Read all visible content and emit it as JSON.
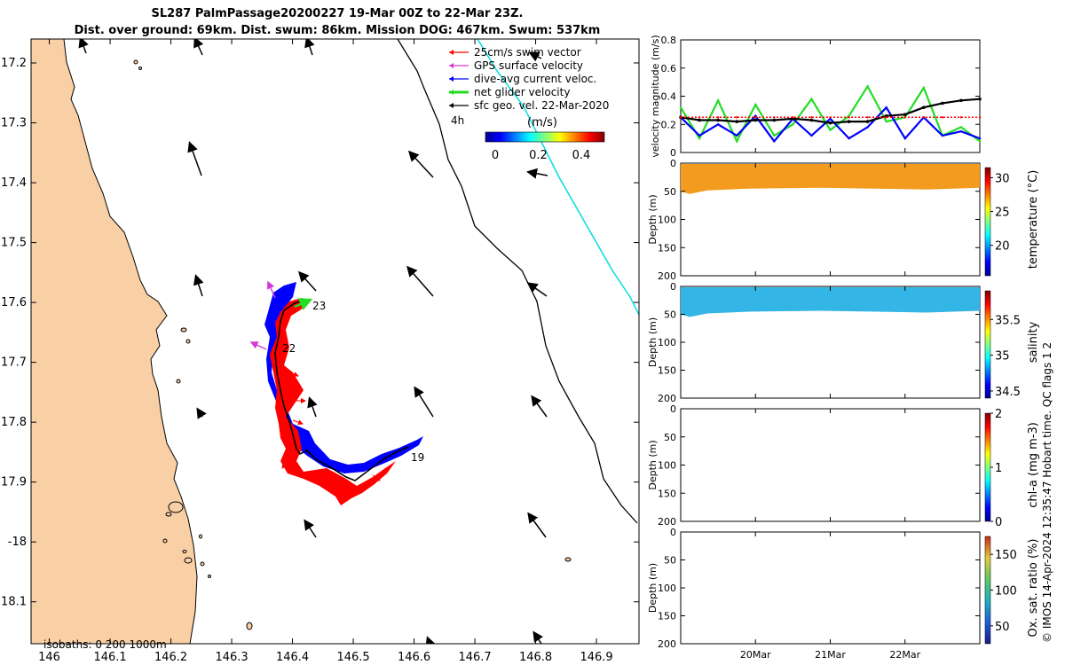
{
  "header": {
    "line1": "SL287 PalmPassage20200227 19-Mar 00Z to 22-Mar 23Z.",
    "line2": "Dist. over ground: 69km. Dist. swum: 86km. Mission DOG: 467km. Swum: 537km"
  },
  "footer": "© IMOS 14-Apr-2024 12:35:47 Hobart time. QC flags 1  2",
  "colors": {
    "land": "#f9cfa5",
    "swim": "#ff0000",
    "gps": "#d63ad6",
    "dive_avg": "#0000ff",
    "net": "#22dd22",
    "geo": "#000000",
    "track": "#00dddd"
  },
  "map": {
    "lon_ticks": [
      "146",
      "146.1",
      "146.2",
      "146.3",
      "146.4",
      "146.5",
      "146.6",
      "146.7",
      "146.8",
      "146.9"
    ],
    "lat_ticks": [
      "17.2",
      "17.3",
      "17.4",
      "17.5",
      "17.6",
      "17.7",
      "17.8",
      "17.9",
      "-18",
      "18.1"
    ],
    "xlim": [
      145.97,
      146.97
    ],
    "ylim": [
      -18.17,
      -17.16
    ],
    "isobaths_label": "isobaths: 0   200  1000m",
    "legend": [
      {
        "label": "25cm/s swim vector",
        "color": "#ff0000"
      },
      {
        "label": "GPS surface velocity",
        "color": "#d63ad6"
      },
      {
        "label": "dive-avg current veloc.",
        "color": "#0000ff"
      },
      {
        "label": "net glider velocity",
        "color": "#22dd22"
      },
      {
        "label": "sfc geo. vel. 22-Mar-2020",
        "color": "#000000"
      }
    ],
    "legend_extra": "4h",
    "colorbar_label": "(m/s)",
    "colorbar_ticks": [
      "0",
      "0.2",
      "0.4"
    ],
    "track_labels": [
      "23",
      "22",
      "19"
    ]
  },
  "chart_data": [
    {
      "type": "line",
      "ylabel": "velocity magnitude (m/s)",
      "ylim": [
        0,
        0.8
      ],
      "yticks": [
        "0",
        "0.2",
        "0.4",
        "0.6",
        "0.8"
      ],
      "xticks": [
        "20Mar",
        "21Mar",
        "22Mar"
      ],
      "x": [
        19.0,
        19.25,
        19.5,
        19.75,
        20.0,
        20.25,
        20.5,
        20.75,
        21.0,
        21.25,
        21.5,
        21.75,
        22.0,
        22.25,
        22.5,
        22.75,
        23.0
      ],
      "series": [
        {
          "color": "#22dd22",
          "values": [
            0.32,
            0.1,
            0.37,
            0.08,
            0.34,
            0.12,
            0.2,
            0.38,
            0.16,
            0.26,
            0.47,
            0.22,
            0.25,
            0.46,
            0.12,
            0.18,
            0.08
          ]
        },
        {
          "color": "#0000ff",
          "values": [
            0.25,
            0.12,
            0.2,
            0.12,
            0.26,
            0.08,
            0.24,
            0.12,
            0.24,
            0.1,
            0.18,
            0.32,
            0.1,
            0.25,
            0.12,
            0.15,
            0.1
          ]
        },
        {
          "color": "#000000",
          "values": [
            0.25,
            0.23,
            0.23,
            0.22,
            0.23,
            0.23,
            0.24,
            0.23,
            0.21,
            0.22,
            0.22,
            0.26,
            0.27,
            0.32,
            0.35,
            0.37,
            0.38
          ]
        },
        {
          "color": "#ff0000",
          "values": [
            0.25,
            0.25,
            0.25,
            0.25,
            0.25,
            0.25,
            0.25,
            0.25,
            0.25,
            0.25,
            0.25,
            0.25,
            0.25,
            0.25,
            0.25,
            0.25,
            0.25
          ]
        }
      ]
    },
    {
      "type": "heatmap",
      "ylabel": "Depth (m)",
      "ylim": [
        0,
        200
      ],
      "yticks": [
        "0",
        "50",
        "100",
        "150",
        "200"
      ],
      "cbar_label": "temperature (°C)",
      "cbar_ticks": [
        "20",
        "25",
        "30"
      ],
      "clim": [
        15.5,
        31.5
      ],
      "value": 29.5,
      "max_depth": 50,
      "fill": "#f39b1e"
    },
    {
      "type": "heatmap",
      "ylabel": "Depth (m)",
      "ylim": [
        0,
        200
      ],
      "yticks": [
        "0",
        "50",
        "100",
        "150",
        "200"
      ],
      "cbar_label": "salinity",
      "cbar_ticks": [
        "34.5",
        "35",
        "35.5"
      ],
      "clim": [
        34.4,
        35.9
      ],
      "value": 35.05,
      "max_depth": 50,
      "fill": "#33b5e5"
    },
    {
      "type": "heatmap",
      "ylabel": "Depth (m)",
      "ylim": [
        0,
        200
      ],
      "yticks": [
        "0",
        "50",
        "100",
        "150",
        "200"
      ],
      "cbar_label": "chl-a (mg m-3)",
      "cbar_ticks": [
        "0",
        "1",
        "2"
      ],
      "clim": [
        0,
        2
      ]
    },
    {
      "type": "heatmap",
      "ylabel": "Depth (m)",
      "ylim": [
        0,
        200
      ],
      "yticks": [
        "0",
        "50",
        "100",
        "150",
        "200"
      ],
      "cbar_label": "Ox. sat. ratio (%)",
      "cbar_ticks": [
        "50",
        "100",
        "150"
      ],
      "clim": [
        25,
        175
      ]
    }
  ]
}
